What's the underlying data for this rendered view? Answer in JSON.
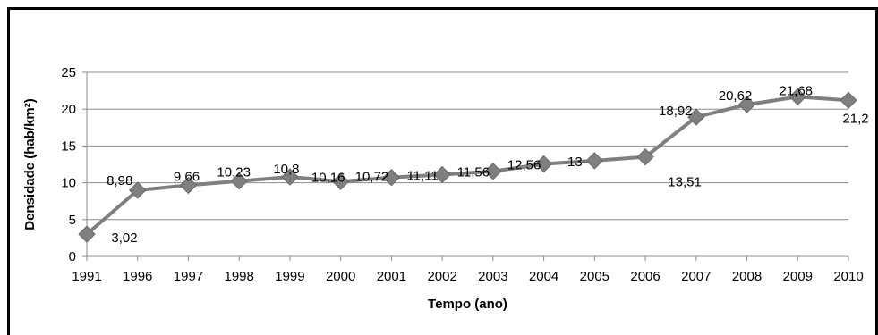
{
  "chart_data": {
    "type": "line",
    "categories": [
      "1991",
      "1996",
      "1997",
      "1998",
      "1999",
      "2000",
      "2001",
      "2002",
      "2003",
      "2004",
      "2005",
      "2006",
      "2007",
      "2008",
      "2009",
      "2010"
    ],
    "series": [
      {
        "values": [
          3.02,
          8.98,
          9.66,
          10.23,
          10.8,
          10.16,
          10.72,
          11.11,
          11.56,
          12.56,
          13,
          13.51,
          18.92,
          20.62,
          21.68,
          21.2
        ],
        "labels": [
          "3,02",
          "8,98",
          "9,66",
          "10,23",
          "10,8",
          "10,16",
          "10,72",
          "11,11",
          "11,56",
          "12,56",
          "13",
          "13,51",
          "18,92",
          "20,62",
          "21,68",
          "21,2"
        ],
        "color": "#7f7f7f"
      }
    ],
    "title": "",
    "xlabel": "Tempo (ano)",
    "ylabel": "Densidade (hab/km²)",
    "ylim": [
      0,
      25
    ],
    "yticks": [
      "0",
      "5",
      "10",
      "15",
      "20",
      "25"
    ],
    "grid": true
  }
}
